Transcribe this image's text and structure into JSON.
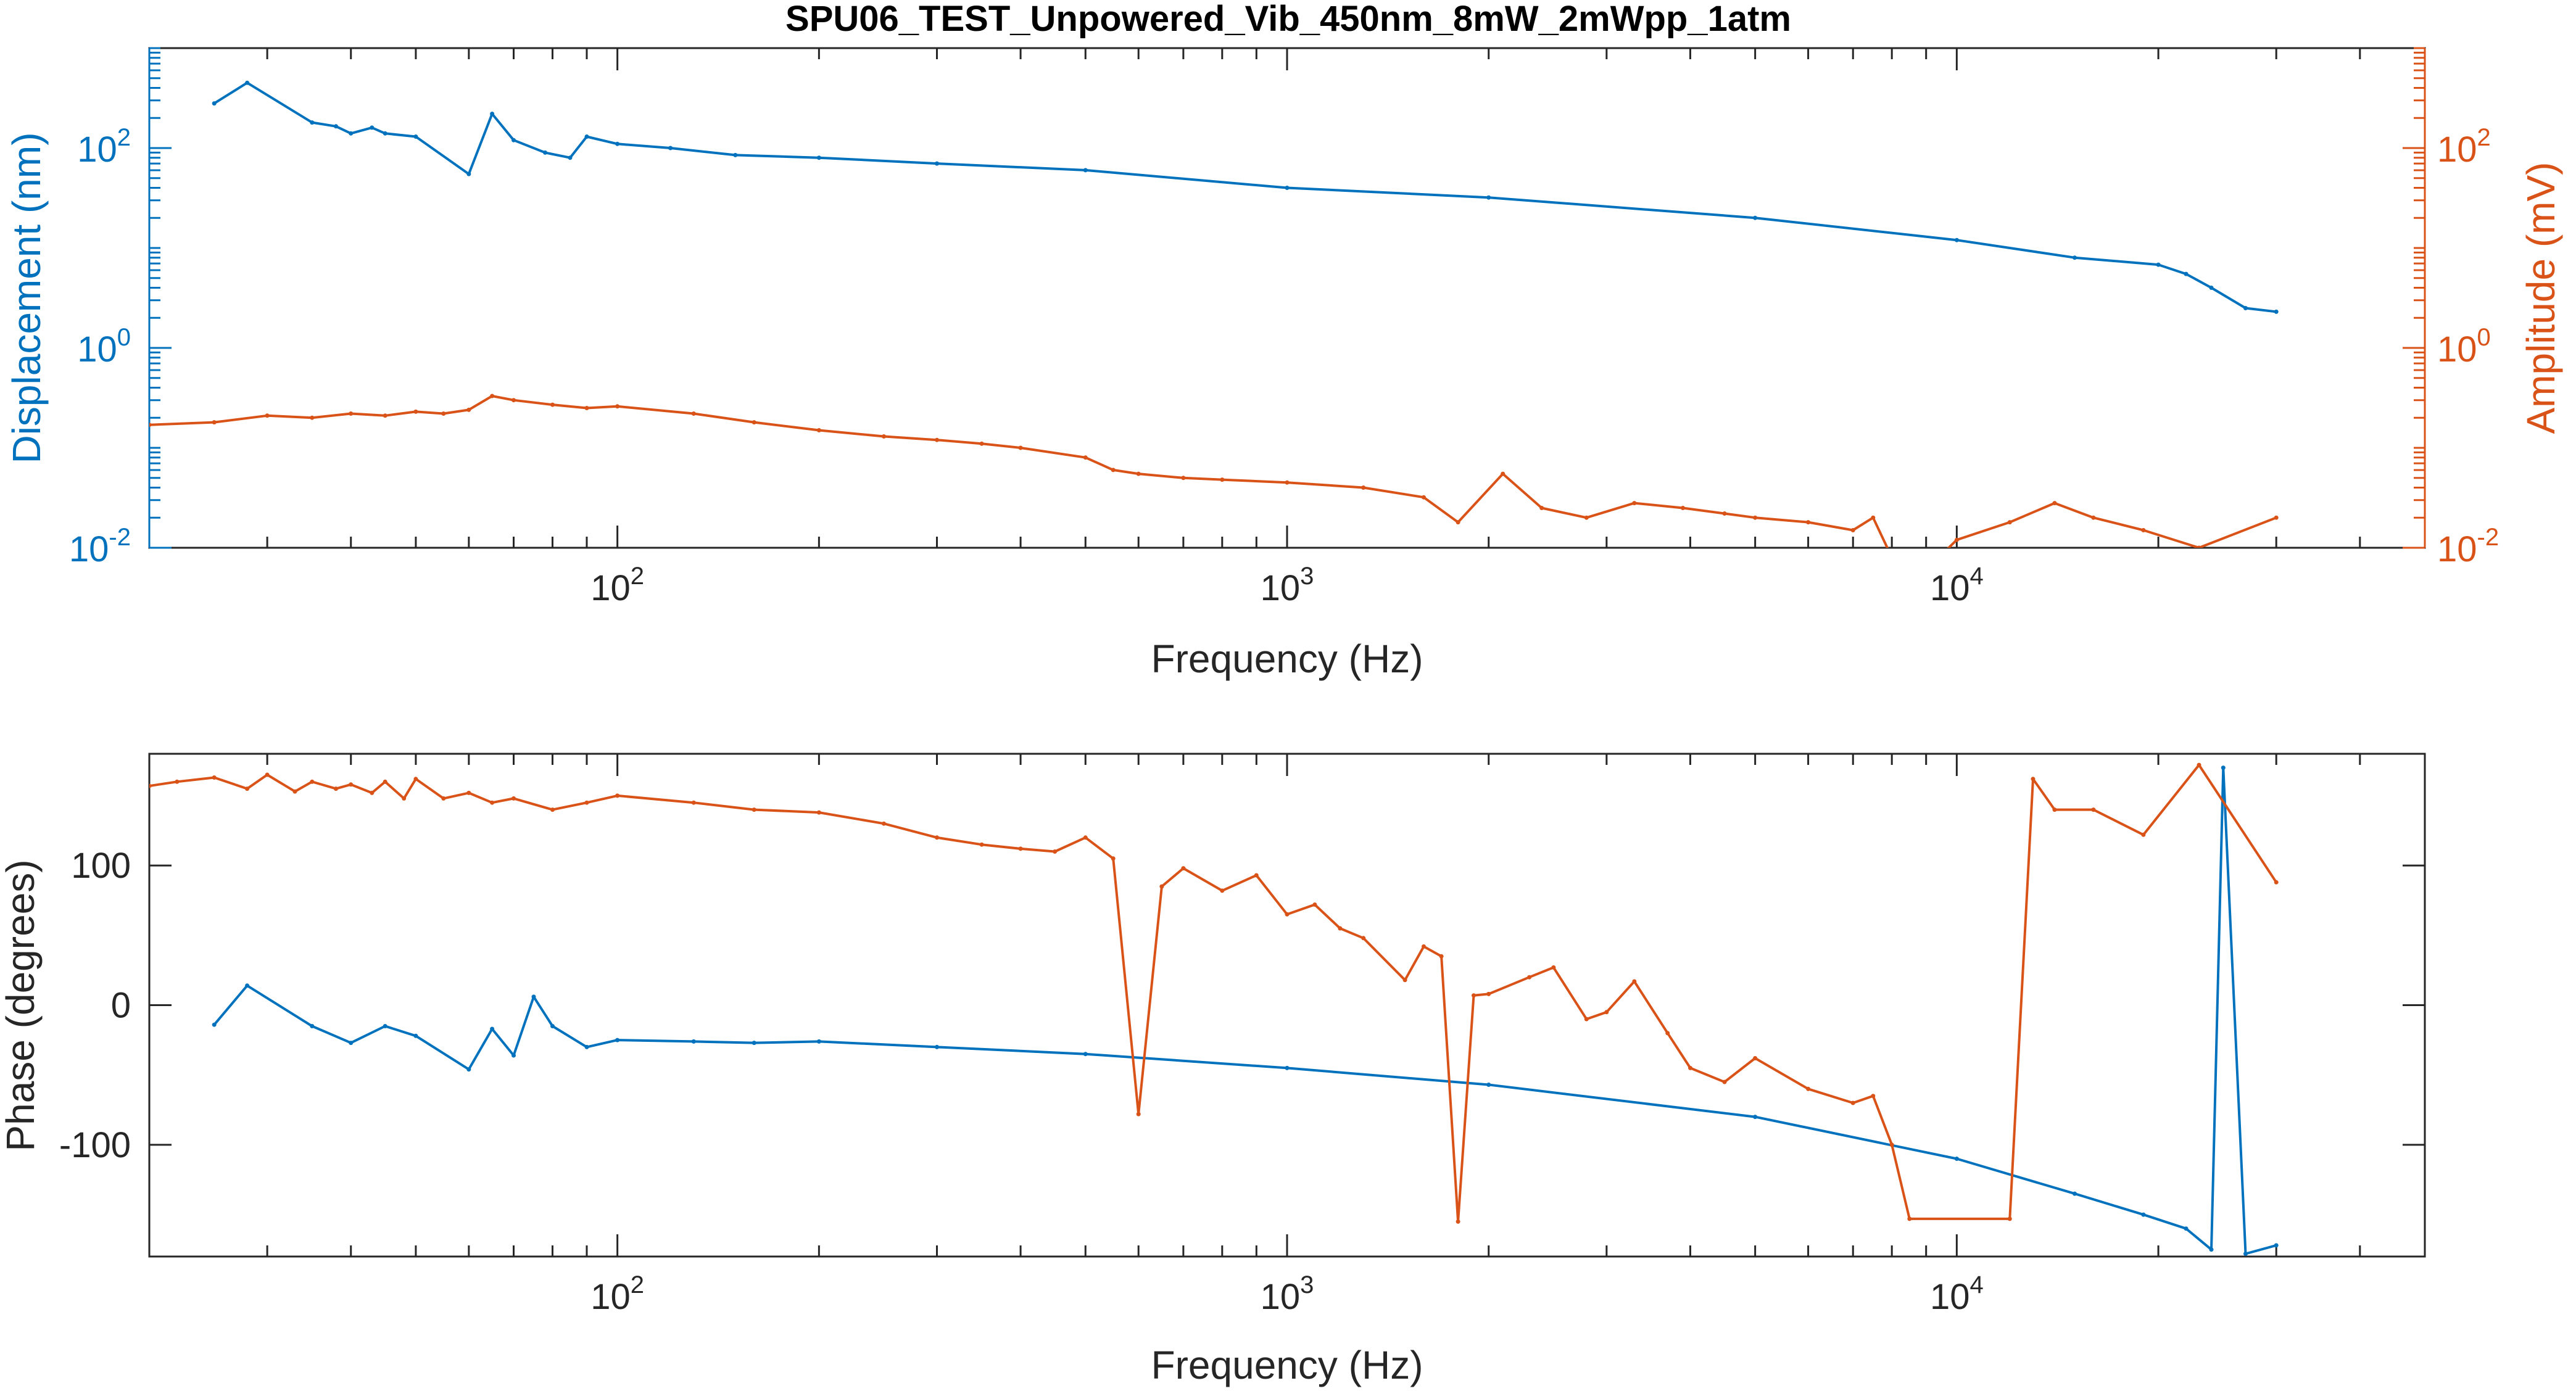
{
  "figure_title": "SPU06_TEST_Unpowered_Vib_450nm_8mW_2mWpp_1atm",
  "colors": {
    "blue": "#0072BD",
    "orange": "#D95319",
    "axis": "#262626",
    "background": "#ffffff"
  },
  "chart_data": [
    {
      "type": "line",
      "title": "SPU06_TEST_Unpowered_Vib_450nm_8mW_2mWpp_1atm",
      "xlabel": "Frequency (Hz)",
      "ylabel": "Displacement (nm)",
      "ylabel_right": "Amplitude (mV)",
      "xscale": "log",
      "yscale": "log",
      "xlim": [
        20,
        50000
      ],
      "ylim": [
        0.01,
        1000
      ],
      "ylim_right": [
        0.01,
        1000
      ],
      "grid": false,
      "xticks": [
        {
          "base": "10",
          "exp": "2",
          "value": 100
        },
        {
          "base": "10",
          "exp": "3",
          "value": 1000
        },
        {
          "base": "10",
          "exp": "4",
          "value": 10000
        }
      ],
      "yticks_left": [
        {
          "base": "10",
          "exp": "-2",
          "value": 0.01
        },
        {
          "base": "10",
          "exp": "0",
          "value": 1
        },
        {
          "base": "10",
          "exp": "2",
          "value": 100
        }
      ],
      "yticks_right": [
        {
          "base": "10",
          "exp": "-2",
          "value": 0.01
        },
        {
          "base": "10",
          "exp": "0",
          "value": 1
        },
        {
          "base": "10",
          "exp": "2",
          "value": 100
        }
      ],
      "series": [
        {
          "axis": "left",
          "color": "#0072BD",
          "x": [
            25,
            28,
            35,
            38,
            40,
            43,
            45,
            50,
            60,
            65,
            70,
            78,
            85,
            90,
            100,
            120,
            150,
            200,
            300,
            500,
            1000,
            2000,
            5000,
            10000,
            15000,
            20000,
            22000,
            24000,
            27000,
            30000
          ],
          "y": [
            280,
            450,
            180,
            165,
            140,
            160,
            140,
            130,
            55,
            220,
            120,
            90,
            80,
            130,
            110,
            100,
            85,
            80,
            70,
            60,
            40,
            32,
            20,
            12,
            8,
            6.8,
            5.5,
            4,
            2.5,
            2.3
          ]
        },
        {
          "axis": "right",
          "color": "#D95319",
          "x": [
            20,
            25,
            30,
            35,
            40,
            45,
            50,
            55,
            60,
            65,
            70,
            80,
            90,
            100,
            130,
            160,
            200,
            250,
            300,
            350,
            400,
            500,
            550,
            600,
            700,
            800,
            1000,
            1300,
            1600,
            1800,
            2100,
            2400,
            2800,
            3300,
            3900,
            4500,
            5000,
            6000,
            7000,
            7500,
            8000,
            9000,
            10000,
            12000,
            14000,
            16000,
            19000,
            23000,
            30000
          ],
          "y": [
            0.17,
            0.18,
            0.21,
            0.2,
            0.22,
            0.21,
            0.23,
            0.22,
            0.24,
            0.33,
            0.3,
            0.27,
            0.25,
            0.26,
            0.22,
            0.18,
            0.15,
            0.13,
            0.12,
            0.11,
            0.1,
            0.08,
            0.06,
            0.055,
            0.05,
            0.048,
            0.045,
            0.04,
            0.032,
            0.018,
            0.055,
            0.025,
            0.02,
            0.028,
            0.025,
            0.022,
            0.02,
            0.018,
            0.015,
            0.02,
            0.008,
            0.006,
            0.012,
            0.018,
            0.028,
            0.02,
            0.015,
            0.01,
            0.02
          ]
        }
      ]
    },
    {
      "type": "line",
      "xlabel": "Frequency (Hz)",
      "ylabel": "Phase (degrees)",
      "xscale": "log",
      "xlim": [
        20,
        50000
      ],
      "ylim": [
        -180,
        180
      ],
      "grid": false,
      "xticks": [
        {
          "base": "10",
          "exp": "2",
          "value": 100
        },
        {
          "base": "10",
          "exp": "3",
          "value": 1000
        },
        {
          "base": "10",
          "exp": "4",
          "value": 10000
        }
      ],
      "yticks": [
        {
          "label": "100",
          "value": 100
        },
        {
          "label": "0",
          "value": 0
        },
        {
          "label": "-100",
          "value": -100
        }
      ],
      "series": [
        {
          "color": "#0072BD",
          "x": [
            25,
            28,
            35,
            40,
            45,
            50,
            60,
            65,
            70,
            75,
            80,
            90,
            100,
            130,
            160,
            200,
            300,
            500,
            1000,
            2000,
            5000,
            10000,
            15000,
            19000,
            22000,
            24000,
            25000,
            27000,
            30000
          ],
          "y": [
            -14,
            14,
            -15,
            -27,
            -15,
            -22,
            -46,
            -17,
            -36,
            6,
            -15,
            -30,
            -25,
            -26,
            -27,
            -26,
            -30,
            -35,
            -45,
            -57,
            -80,
            -110,
            -135,
            -150,
            -160,
            -175,
            170,
            -178,
            -172
          ]
        },
        {
          "color": "#D95319",
          "x": [
            20,
            22,
            25,
            28,
            30,
            33,
            35,
            38,
            40,
            43,
            45,
            48,
            50,
            55,
            60,
            65,
            70,
            80,
            90,
            100,
            130,
            160,
            200,
            250,
            300,
            350,
            400,
            450,
            500,
            550,
            600,
            650,
            700,
            800,
            900,
            1000,
            1100,
            1200,
            1300,
            1500,
            1600,
            1700,
            1800,
            1900,
            2000,
            2300,
            2500,
            2800,
            3000,
            3300,
            3700,
            4000,
            4500,
            5000,
            6000,
            7000,
            7500,
            8000,
            8500,
            12000,
            13000,
            14000,
            16000,
            19000,
            23000,
            30000
          ],
          "y": [
            157,
            160,
            163,
            155,
            165,
            153,
            160,
            155,
            158,
            152,
            160,
            148,
            162,
            148,
            152,
            145,
            148,
            140,
            145,
            150,
            145,
            140,
            138,
            130,
            120,
            115,
            112,
            110,
            120,
            105,
            -78,
            85,
            98,
            82,
            93,
            65,
            72,
            55,
            48,
            18,
            42,
            35,
            -155,
            7,
            8,
            20,
            27,
            -10,
            -5,
            17,
            -20,
            -45,
            -55,
            -38,
            -60,
            -70,
            -65,
            -100,
            -153,
            -153,
            162,
            140,
            140,
            122,
            172,
            88
          ]
        }
      ]
    }
  ]
}
